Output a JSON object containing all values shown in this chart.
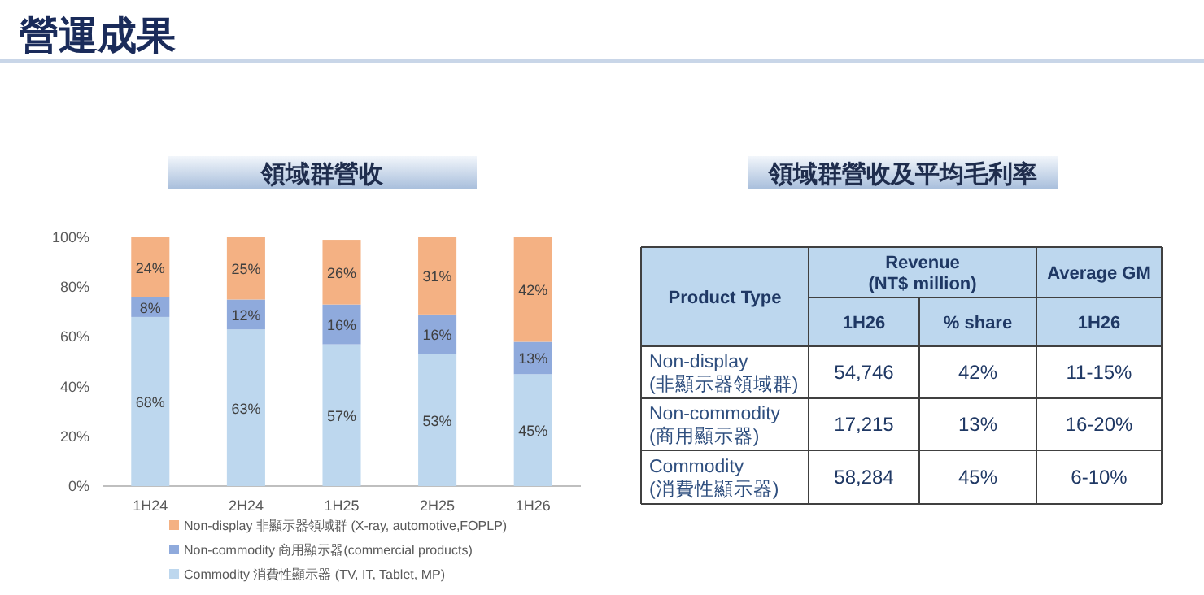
{
  "chart_data": [
    {
      "type": "bar",
      "stacked": true,
      "title": "領域群營收",
      "annotations": [
        "營運成果"
      ],
      "categories": [
        "1H24",
        "2H24",
        "1H25",
        "2H25",
        "1H26"
      ],
      "series": [
        {
          "name": "Commodity 消費性顯示器 (TV, IT, Tablet, MP)",
          "color": "#bdd7ee",
          "values": [
            68,
            63,
            57,
            53,
            45
          ],
          "value_labels": [
            "68%",
            "63%",
            "57%",
            "53%",
            "45%"
          ]
        },
        {
          "name": "Non-commodity 商用顯示器(commercial products)",
          "color": "#8faadc",
          "values": [
            8,
            12,
            16,
            16,
            13
          ],
          "value_labels": [
            "8%",
            "12%",
            "16%",
            "16%",
            "13%"
          ]
        },
        {
          "name": "Non-display 非顯示器領域群 (X-ray, automotive,FOPLP)",
          "color": "#f4b183",
          "values": [
            24,
            25,
            26,
            31,
            42
          ],
          "value_labels": [
            "24%",
            "25%",
            "26%",
            "31%",
            "42%"
          ]
        }
      ],
      "ylim": [
        0,
        100
      ],
      "yticks": [
        {
          "value": 0,
          "label": "0%"
        },
        {
          "value": 20,
          "label": "20%"
        },
        {
          "value": 40,
          "label": "40%"
        },
        {
          "value": 60,
          "label": "60%"
        },
        {
          "value": 80,
          "label": "80%"
        },
        {
          "value": 100,
          "label": "100%"
        }
      ],
      "grid": false,
      "legend": "bottom"
    },
    {
      "type": "other",
      "title": "領域群營收及平均毛利率",
      "annotations": [
        "Product Type",
        "Revenue\n(NT$ million)",
        "Average GM"
      ],
      "categories": [
        "Non-display\n(非顯示器領域群)",
        "Non-commodity\n(商用顯示器)",
        "Commodity\n(消費性顯示器)"
      ],
      "series": [
        {
          "name": "1H26",
          "values": [
            54746,
            17215,
            58284
          ],
          "value_labels": [
            "54,746",
            "17,215",
            "58,284"
          ]
        },
        {
          "name": "% share",
          "values": [
            42,
            13,
            45
          ],
          "value_labels": [
            "42%",
            "13%",
            "45%"
          ]
        },
        {
          "name": "1H26",
          "values": [
            null,
            null,
            null
          ],
          "value_labels": [
            "11-15%",
            "16-20%",
            "6-10%"
          ]
        }
      ]
    }
  ]
}
